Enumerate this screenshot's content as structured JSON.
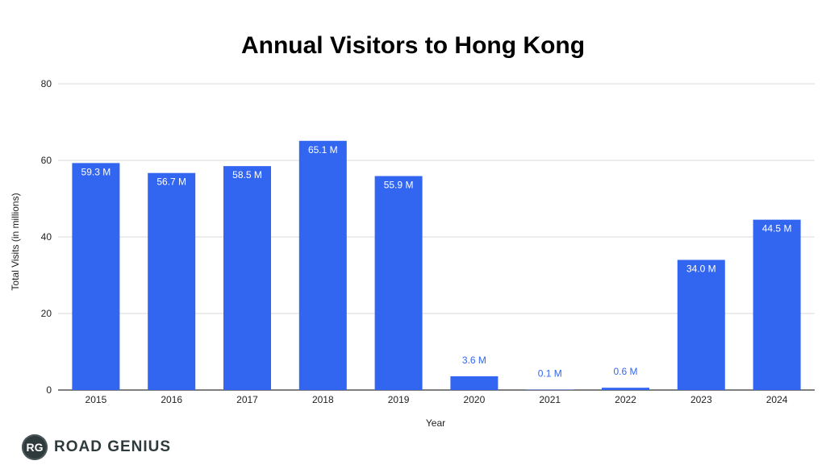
{
  "chart_data": {
    "type": "bar",
    "title": "Annual Visitors to Hong Kong",
    "xlabel": "Year",
    "ylabel": "Total Visits (in millions)",
    "categories": [
      "2015",
      "2016",
      "2017",
      "2018",
      "2019",
      "2020",
      "2021",
      "2022",
      "2023",
      "2024"
    ],
    "values": [
      59.3,
      56.7,
      58.5,
      65.1,
      55.9,
      3.6,
      0.1,
      0.6,
      34.0,
      44.5
    ],
    "data_labels": [
      "59.3 M",
      "56.7 M",
      "58.5 M",
      "65.1 M",
      "55.9 M",
      "3.6 M",
      "0.1 M",
      "0.6 M",
      "34.0 M",
      "44.5 M"
    ],
    "ylim": [
      0,
      80
    ],
    "yticks": [
      0,
      20,
      40,
      60,
      80
    ],
    "grid": true,
    "legend": "none",
    "bar_color": "#3366f0",
    "label_inside_color": "#ffffff",
    "label_outside_color": "#3366f0"
  },
  "branding": {
    "logo_initials": "RG",
    "logo_text": "ROAD GENIUS"
  }
}
